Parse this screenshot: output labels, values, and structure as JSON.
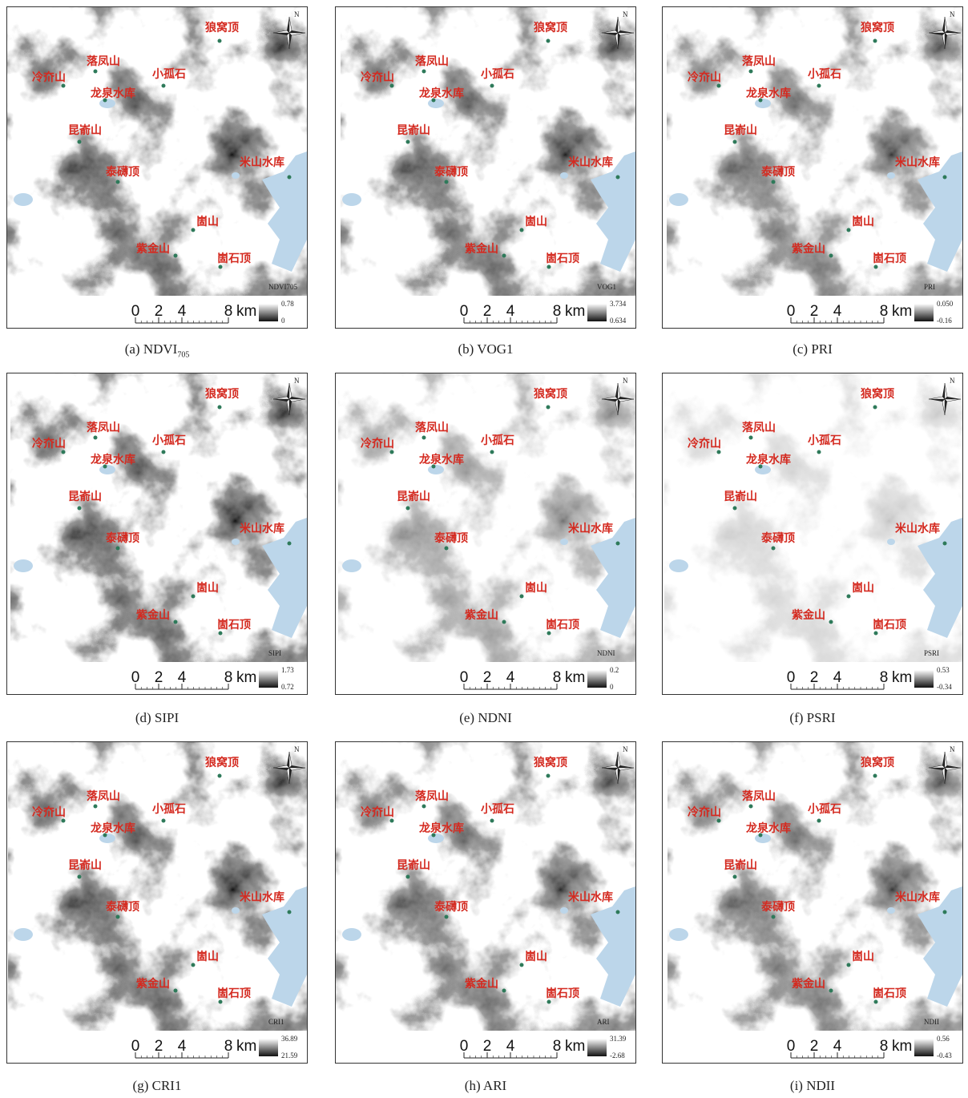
{
  "north": "N",
  "scale": {
    "ticks": [
      0,
      2,
      4,
      8
    ],
    "unit": "km"
  },
  "places": [
    "狼窝顶",
    "落凤山",
    "冷夼山",
    "小孤石",
    "龙泉水库",
    "昆嵛山",
    "米山水库",
    "泰礴顶",
    "崮山",
    "紫金山",
    "崮石顶"
  ],
  "panels": [
    {
      "caption": {
        "letter": "(a)",
        "name": "NDVI",
        "sub": "705"
      },
      "legend": {
        "title": "NDVI705",
        "max": "0.78",
        "min": "0"
      }
    },
    {
      "caption": {
        "letter": "(b)",
        "name": "VOG1"
      },
      "legend": {
        "title": "VOG1",
        "max": "3.734",
        "min": "0.634"
      }
    },
    {
      "caption": {
        "letter": "(c)",
        "name": "PRI"
      },
      "legend": {
        "title": "PRI",
        "max": "0.050",
        "min": "-0.16"
      }
    },
    {
      "caption": {
        "letter": "(d)",
        "name": "SIPI"
      },
      "legend": {
        "title": "SIPI",
        "max": "1.73",
        "min": "0.72"
      }
    },
    {
      "caption": {
        "letter": "(e)",
        "name": "NDNI"
      },
      "legend": {
        "title": "NDNI",
        "max": "0.2",
        "min": "0"
      }
    },
    {
      "caption": {
        "letter": "(f)",
        "name": "PSRI"
      },
      "legend": {
        "title": "PSRI",
        "max": "0.53",
        "min": "-0.34"
      }
    },
    {
      "caption": {
        "letter": "(g)",
        "name": "CRI1"
      },
      "legend": {
        "title": "CRI1",
        "max": "36.89",
        "min": "21.59"
      }
    },
    {
      "caption": {
        "letter": "(h)",
        "name": "ARI"
      },
      "legend": {
        "title": "ARI",
        "max": "31.39",
        "min": "-2.68"
      }
    },
    {
      "caption": {
        "letter": "(i)",
        "name": "NDII"
      },
      "legend": {
        "title": "NDII",
        "max": "0.56",
        "min": "-0.43"
      }
    }
  ]
}
